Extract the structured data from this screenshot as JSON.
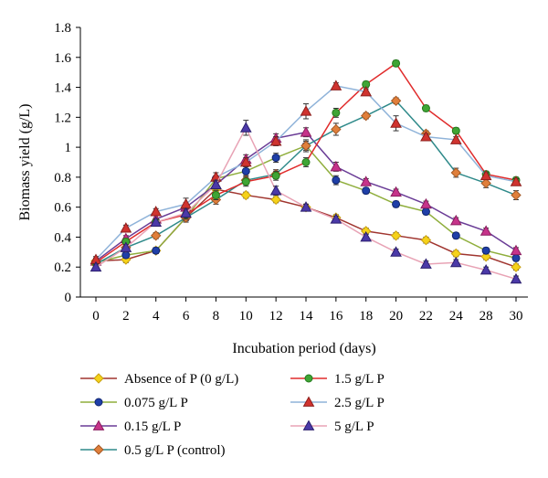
{
  "chart_data": {
    "type": "line",
    "title": "",
    "xlabel": "Incubation period (days)",
    "ylabel": "Biomass yield (g/L)",
    "ylim": [
      0,
      1.8
    ],
    "y_ticks": [
      "0",
      "0.2",
      "0.4",
      "0.6",
      "0.8",
      "1",
      "1.2",
      "1.4",
      "1.6",
      "1.8"
    ],
    "categories": [
      "0",
      "2",
      "4",
      "6",
      "8",
      "10",
      "12",
      "14",
      "16",
      "18",
      "20",
      "22",
      "24",
      "28",
      "30"
    ],
    "grid": false,
    "legend_position": "bottom",
    "error_bars": true,
    "series": [
      {
        "name": "Absence of P (0 g/L)",
        "line_color": "#a0352f",
        "marker": "diamond",
        "marker_fill": "#f5d21a",
        "marker_stroke": "#c8a012",
        "values": [
          0.24,
          0.25,
          0.31,
          0.53,
          0.72,
          0.68,
          0.65,
          0.6,
          0.53,
          0.44,
          0.41,
          0.38,
          0.29,
          0.27,
          0.2
        ],
        "errors": [
          0.02,
          0.02,
          0.02,
          0.02,
          0.02,
          0.02,
          0.02,
          0.02,
          0.02,
          0.02,
          0.02,
          0.02,
          0.02,
          0.02,
          0.02
        ]
      },
      {
        "name": "0.075 g/L P",
        "line_color": "#8fae3c",
        "marker": "circle",
        "marker_fill": "#1f3fa8",
        "marker_stroke": "#10256e",
        "values": [
          0.23,
          0.28,
          0.31,
          0.53,
          0.79,
          0.84,
          0.93,
          1.01,
          0.78,
          0.71,
          0.62,
          0.57,
          0.41,
          0.31,
          0.26
        ],
        "errors": [
          0.02,
          0.02,
          0.02,
          0.02,
          0.02,
          0.03,
          0.03,
          0.03,
          0.03,
          0.02,
          0.02,
          0.02,
          0.02,
          0.02,
          0.02
        ]
      },
      {
        "name": "0.15 g/L P",
        "line_color": "#6a3c96",
        "marker": "triangle",
        "marker_fill": "#c6338a",
        "marker_stroke": "#8a1d5f",
        "values": [
          0.24,
          0.39,
          0.52,
          0.6,
          0.75,
          0.92,
          1.06,
          1.1,
          0.87,
          0.77,
          0.7,
          0.62,
          0.51,
          0.44,
          0.31
        ],
        "errors": [
          0.02,
          0.02,
          0.03,
          0.03,
          0.03,
          0.03,
          0.03,
          0.03,
          0.03,
          0.02,
          0.02,
          0.02,
          0.02,
          0.02,
          0.02
        ]
      },
      {
        "name": "0.5 g/L P (control)",
        "line_color": "#2f8a8a",
        "marker": "diamond",
        "marker_fill": "#e07f3b",
        "marker_stroke": "#a35824",
        "values": [
          0.22,
          0.33,
          0.41,
          0.53,
          0.65,
          0.78,
          0.82,
          1.01,
          1.12,
          1.21,
          1.31,
          1.09,
          0.83,
          0.76,
          0.68
        ],
        "errors": [
          0.02,
          0.02,
          0.02,
          0.03,
          0.03,
          0.03,
          0.03,
          0.04,
          0.04,
          0.02,
          0.02,
          0.02,
          0.03,
          0.03,
          0.03
        ]
      },
      {
        "name": "1.5 g/L P",
        "line_color": "#e02b2b",
        "marker": "circle",
        "marker_fill": "#3fa535",
        "marker_stroke": "#237a1c",
        "values": [
          0.23,
          0.37,
          0.5,
          0.55,
          0.68,
          0.77,
          0.81,
          0.9,
          1.23,
          1.42,
          1.56,
          1.26,
          1.11,
          0.82,
          0.78
        ],
        "errors": [
          0.02,
          0.02,
          0.02,
          0.03,
          0.03,
          0.03,
          0.03,
          0.03,
          0.03,
          0.02,
          0.02,
          0.02,
          0.02,
          0.02,
          0.02
        ]
      },
      {
        "name": "2.5 g/L P",
        "line_color": "#8fb3d9",
        "marker": "triangle",
        "marker_fill": "#d0332f",
        "marker_stroke": "#8d1f1c",
        "values": [
          0.25,
          0.46,
          0.57,
          0.62,
          0.8,
          0.9,
          1.04,
          1.24,
          1.41,
          1.37,
          1.16,
          1.07,
          1.05,
          0.81,
          0.77
        ],
        "errors": [
          0.02,
          0.02,
          0.02,
          0.04,
          0.03,
          0.03,
          0.03,
          0.05,
          0.02,
          0.02,
          0.05,
          0.02,
          0.02,
          0.02,
          0.02
        ]
      },
      {
        "name": "5 g/L P",
        "line_color": "#e8a3b5",
        "marker": "triangle",
        "marker_fill": "#4b39a8",
        "marker_stroke": "#2b1f6e",
        "values": [
          0.2,
          0.33,
          0.5,
          0.56,
          0.75,
          1.13,
          0.71,
          0.6,
          0.52,
          0.4,
          0.3,
          0.22,
          0.23,
          0.18,
          0.12
        ],
        "errors": [
          0.02,
          0.02,
          0.02,
          0.03,
          0.03,
          0.05,
          0.03,
          0.02,
          0.02,
          0.02,
          0.02,
          0.02,
          0.02,
          0.02,
          0.02
        ]
      }
    ]
  }
}
